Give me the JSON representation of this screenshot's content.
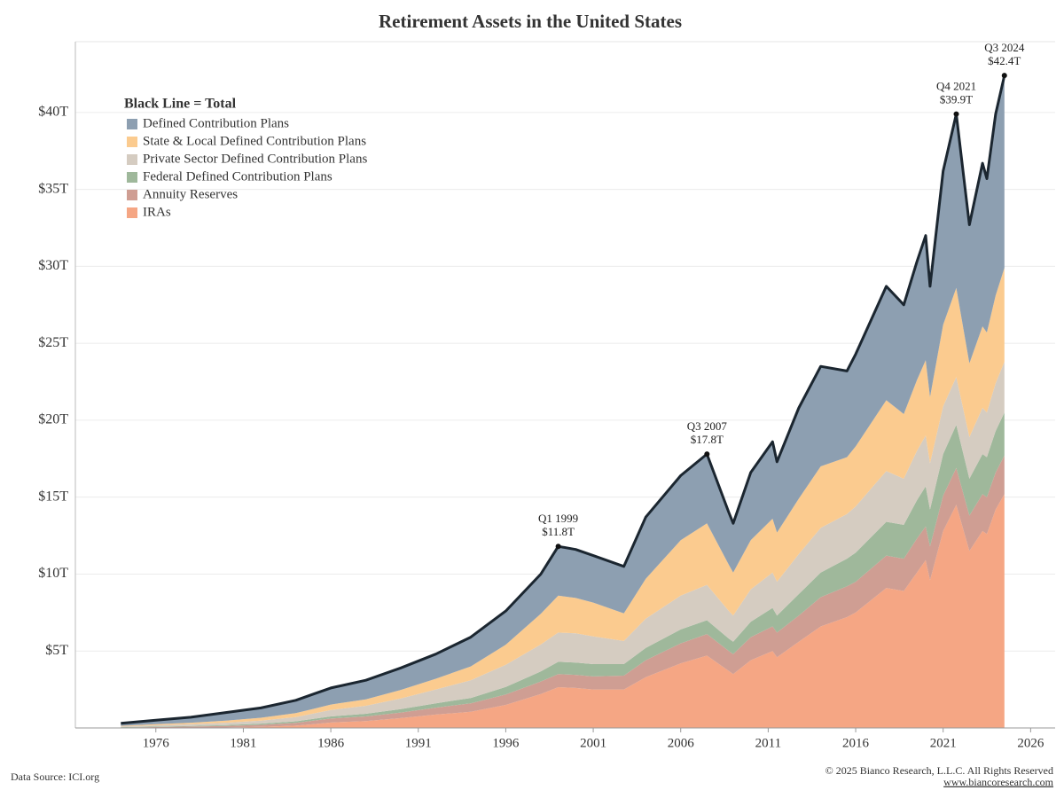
{
  "chart_data": {
    "type": "stacked_area",
    "title": "Retirement Assets in the United States",
    "x": [
      1974,
      1976,
      1978,
      1980,
      1982,
      1984,
      1985,
      1986,
      1988,
      1990,
      1992,
      1994,
      1996,
      1998,
      1999,
      2000,
      2001,
      2002.75,
      2004,
      2006,
      2007.5,
      2008.75,
      2009,
      2010,
      2011.25,
      2011.5,
      2012.75,
      2014,
      2015.5,
      2016,
      2017.75,
      2018.75,
      2019.5,
      2020,
      2020.25,
      2021,
      2021.75,
      2022.5,
      2023.25,
      2023.5,
      2024,
      2024.5
    ],
    "series": [
      {
        "name": "Defined Contribution Plans",
        "color": "#8d9fb1",
        "values": [
          0.16,
          0.26,
          0.36,
          0.52,
          0.64,
          0.84,
          0.96,
          1.08,
          1.24,
          1.43,
          1.6,
          1.9,
          2.19,
          2.58,
          3.2,
          3.15,
          3.05,
          3.05,
          4.0,
          4.2,
          4.5,
          3.4,
          3.2,
          4.4,
          5.0,
          4.6,
          5.9,
          6.5,
          5.6,
          6.0,
          7.4,
          7.1,
          7.7,
          8.1,
          7.2,
          10.0,
          11.3,
          9.0,
          10.6,
          10.0,
          11.8,
          12.5
        ]
      },
      {
        "name": "State & Local Defined Contribution Plans",
        "color": "#fbcb8f",
        "values": [
          0.04,
          0.07,
          0.1,
          0.14,
          0.18,
          0.25,
          0.3,
          0.35,
          0.42,
          0.55,
          0.7,
          0.9,
          1.3,
          2.0,
          2.4,
          2.3,
          2.2,
          1.8,
          2.6,
          3.6,
          4.0,
          3.0,
          2.8,
          3.2,
          3.5,
          3.2,
          3.6,
          4.0,
          3.7,
          3.9,
          4.6,
          4.2,
          4.6,
          4.9,
          4.3,
          5.3,
          5.8,
          4.8,
          5.3,
          5.2,
          5.7,
          6.1
        ]
      },
      {
        "name": "Private Sector Defined Contribution Plans",
        "color": "#d5ccc1",
        "values": [
          0.05,
          0.08,
          0.11,
          0.15,
          0.2,
          0.28,
          0.35,
          0.42,
          0.52,
          0.7,
          0.9,
          1.15,
          1.45,
          1.75,
          1.9,
          1.9,
          1.8,
          1.5,
          1.9,
          2.2,
          2.3,
          1.8,
          1.7,
          2.1,
          2.3,
          2.2,
          2.6,
          2.9,
          2.9,
          3.0,
          3.3,
          3.0,
          3.2,
          3.3,
          3.0,
          3.1,
          3.1,
          2.7,
          3.0,
          2.9,
          3.1,
          3.3
        ]
      },
      {
        "name": "Federal Defined Contribution Plans",
        "color": "#9fb89b",
        "values": [
          0.02,
          0.03,
          0.04,
          0.06,
          0.08,
          0.1,
          0.12,
          0.14,
          0.17,
          0.22,
          0.28,
          0.35,
          0.48,
          0.65,
          0.8,
          0.8,
          0.8,
          0.75,
          0.8,
          0.9,
          0.9,
          0.8,
          0.8,
          1.0,
          1.2,
          1.1,
          1.4,
          1.6,
          1.8,
          1.9,
          2.2,
          2.2,
          2.5,
          2.6,
          2.4,
          2.7,
          2.8,
          2.4,
          2.6,
          2.6,
          2.7,
          2.8
        ]
      },
      {
        "name": "Annuity Reserves",
        "color": "#cf9e93",
        "values": [
          0.03,
          0.05,
          0.07,
          0.1,
          0.13,
          0.18,
          0.22,
          0.26,
          0.3,
          0.36,
          0.45,
          0.55,
          0.68,
          0.82,
          0.85,
          0.85,
          0.85,
          0.9,
          1.1,
          1.3,
          1.4,
          1.3,
          1.3,
          1.5,
          1.6,
          1.6,
          1.7,
          1.9,
          2.0,
          2.0,
          2.1,
          2.1,
          2.2,
          2.2,
          2.2,
          2.3,
          2.4,
          2.3,
          2.4,
          2.4,
          2.4,
          2.5
        ]
      },
      {
        "name": "IRAs",
        "color": "#f5a684",
        "values": [
          0.0,
          0.01,
          0.02,
          0.03,
          0.07,
          0.15,
          0.25,
          0.35,
          0.45,
          0.64,
          0.87,
          1.05,
          1.5,
          2.2,
          2.65,
          2.6,
          2.5,
          2.5,
          3.3,
          4.2,
          4.7,
          3.7,
          3.5,
          4.4,
          5.0,
          4.6,
          5.6,
          6.6,
          7.2,
          7.5,
          9.1,
          8.9,
          10.1,
          10.9,
          9.6,
          12.8,
          14.5,
          11.5,
          12.8,
          12.6,
          14.2,
          15.2
        ]
      }
    ],
    "total": {
      "name": "Black Line = Total",
      "color": "#1b2630",
      "values": [
        0.3,
        0.5,
        0.7,
        1.0,
        1.3,
        1.8,
        2.2,
        2.6,
        3.1,
        3.9,
        4.8,
        5.9,
        7.6,
        10.0,
        11.8,
        11.6,
        11.2,
        10.5,
        13.7,
        16.4,
        17.8,
        14.0,
        13.3,
        16.6,
        18.6,
        17.3,
        20.8,
        23.5,
        23.2,
        24.3,
        28.7,
        27.5,
        30.3,
        32.0,
        28.7,
        36.2,
        39.9,
        32.7,
        36.7,
        35.7,
        39.9,
        42.4
      ]
    },
    "annotations": [
      {
        "x": 1999,
        "value": 11.8,
        "label": "Q1 1999",
        "value_label": "$11.8T"
      },
      {
        "x": 2007.5,
        "value": 17.8,
        "label": "Q3 2007",
        "value_label": "$17.8T"
      },
      {
        "x": 2021.75,
        "value": 39.9,
        "label": "Q4 2021",
        "value_label": "$39.9T"
      },
      {
        "x": 2024.5,
        "value": 42.4,
        "label": "Q3 2024",
        "value_label": "$42.4T"
      }
    ],
    "xlim": [
      1971.4,
      2027.4
    ],
    "xticks": [
      1976,
      1981,
      1986,
      1991,
      1996,
      2001,
      2006,
      2011,
      2016,
      2021,
      2026
    ],
    "ylim": [
      0,
      44.6
    ],
    "yticks": [
      {
        "value": 5,
        "label": "$5T"
      },
      {
        "value": 10,
        "label": "$10T"
      },
      {
        "value": 15,
        "label": "$15T"
      },
      {
        "value": 20,
        "label": "$20T"
      },
      {
        "value": 25,
        "label": "$25T"
      },
      {
        "value": 30,
        "label": "$30T"
      },
      {
        "value": 35,
        "label": "$35T"
      },
      {
        "value": 40,
        "label": "$40T"
      }
    ],
    "grid": true,
    "legend": "top-left"
  },
  "footer": {
    "source": "Data Source: ICI.org",
    "copyright": "© 2025 Bianco Research, L.L.C. All Rights Reserved",
    "website": "www.biancoresearch.com"
  }
}
